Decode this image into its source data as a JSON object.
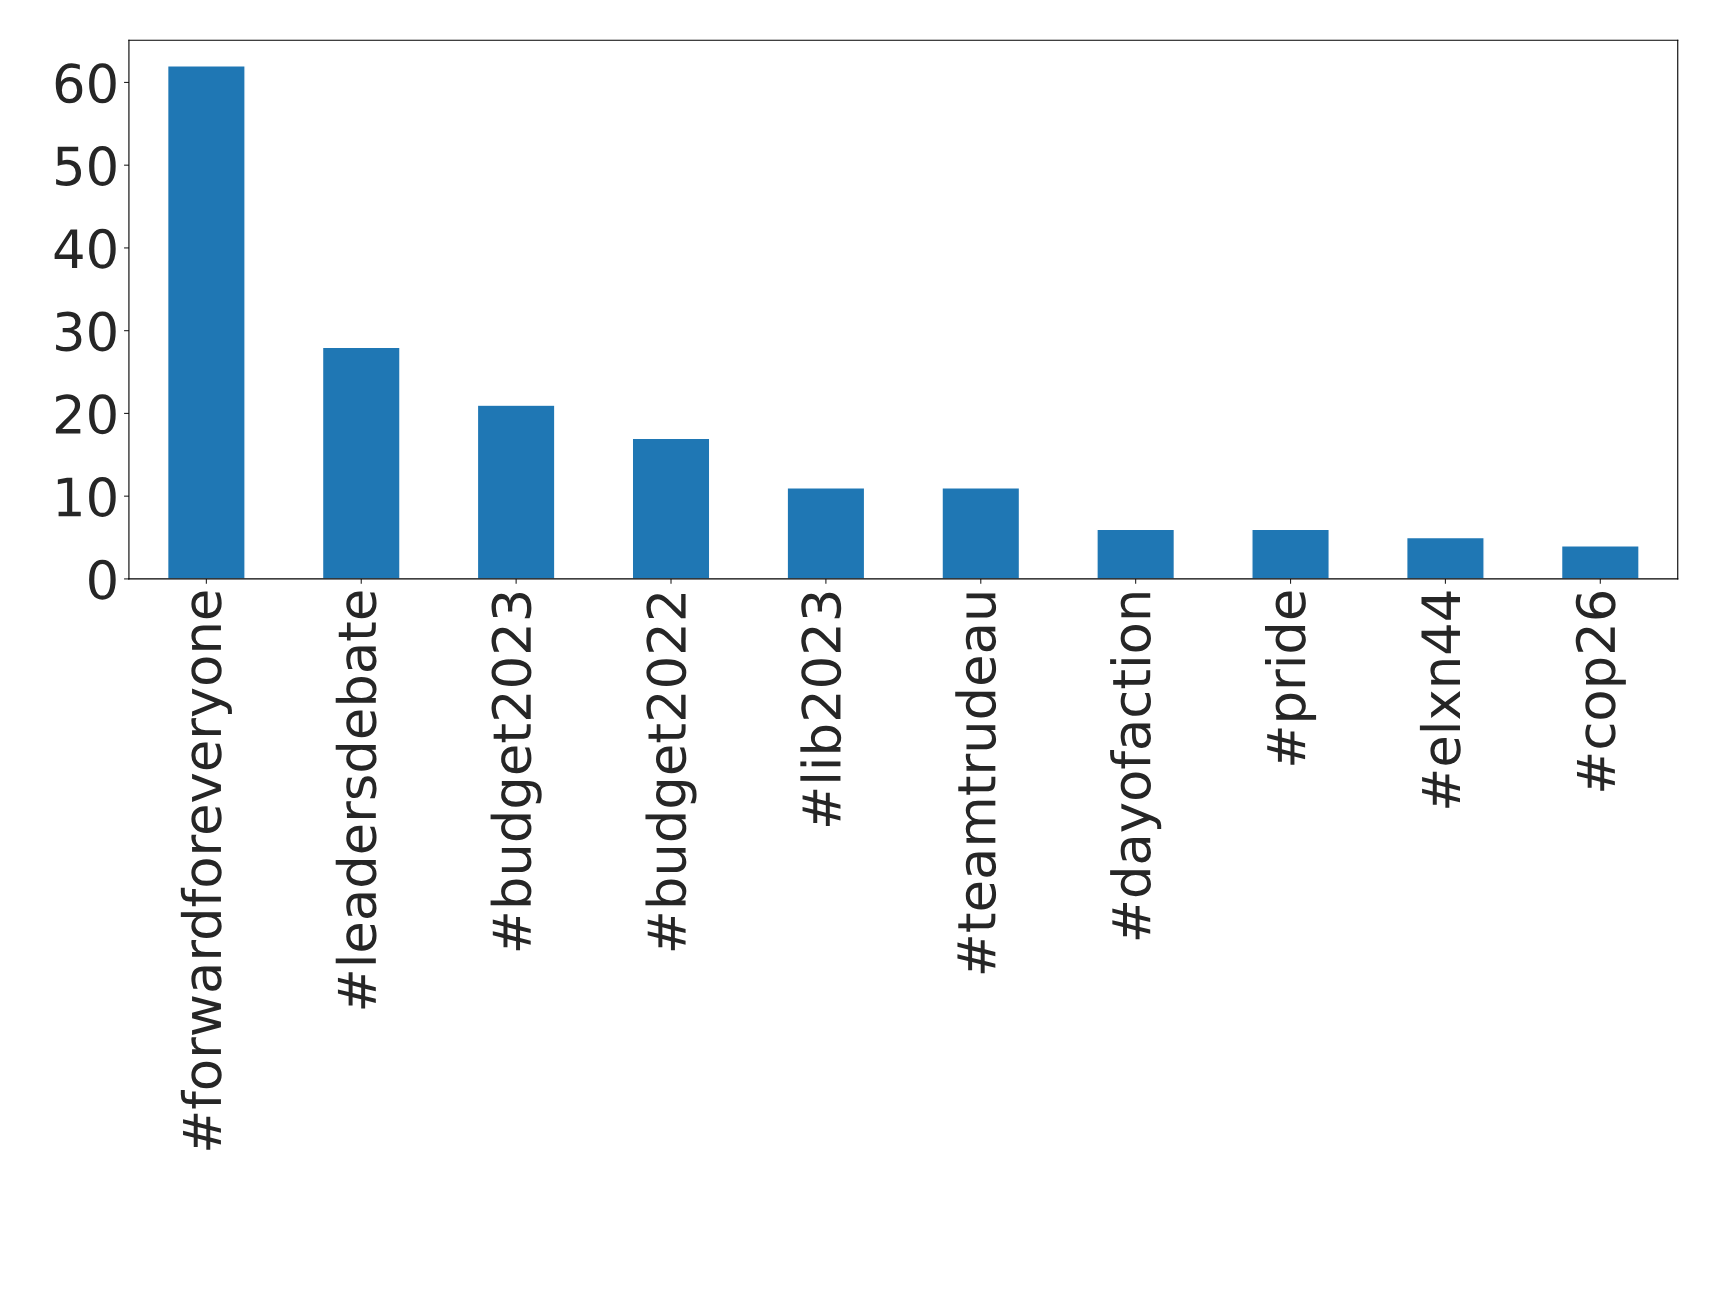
{
  "chart_data": {
    "type": "bar",
    "categories": [
      "#forwardforeveryone",
      "#leadersdebate",
      "#budget2023",
      "#budget2022",
      "#lib2023",
      "#teamtrudeau",
      "#dayofaction",
      "#pride",
      "#elxn44",
      "#cop26"
    ],
    "values": [
      62,
      28,
      21,
      17,
      11,
      11,
      6,
      6,
      5,
      4
    ],
    "color": "#1f77b4",
    "ylim": [
      0,
      65.1
    ],
    "yticks": [
      0,
      10,
      20,
      30,
      40,
      50,
      60
    ],
    "grid": false
  }
}
